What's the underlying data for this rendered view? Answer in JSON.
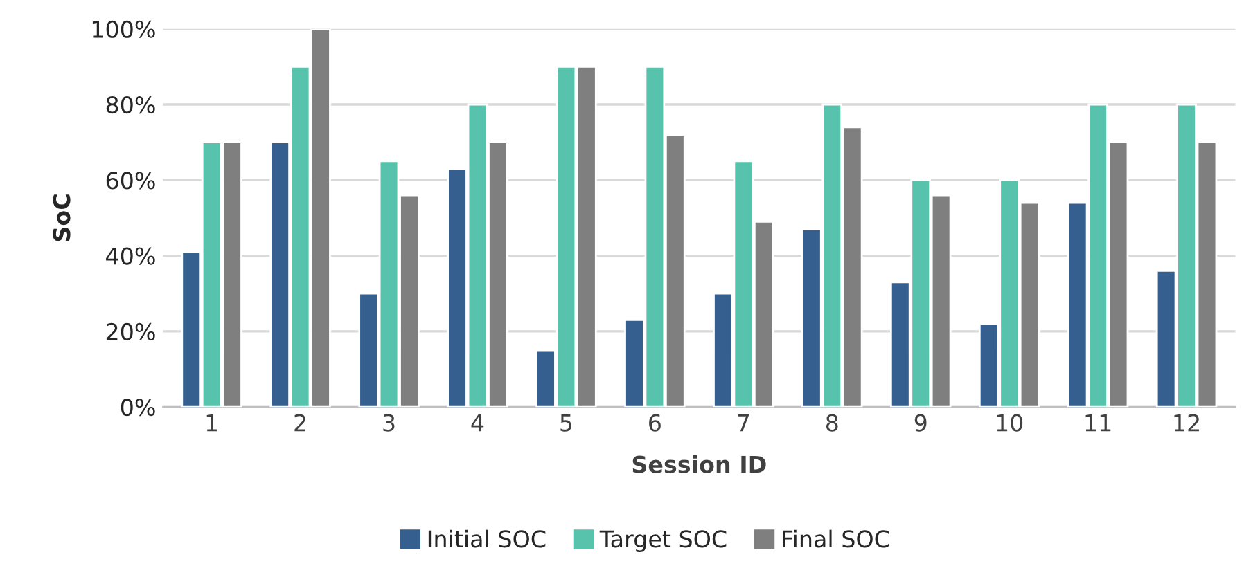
{
  "chart_data": {
    "type": "bar",
    "xlabel": "Session ID",
    "ylabel": "SoC",
    "categories": [
      "1",
      "2",
      "3",
      "4",
      "5",
      "6",
      "7",
      "8",
      "9",
      "10",
      "11",
      "12"
    ],
    "series": [
      {
        "name": "Initial SOC",
        "color": "#355f8e",
        "values": [
          41,
          70,
          30,
          63,
          15,
          23,
          30,
          47,
          33,
          22,
          54,
          36
        ]
      },
      {
        "name": "Target SOC",
        "color": "#58c3ad",
        "values": [
          70,
          90,
          65,
          80,
          90,
          90,
          65,
          80,
          60,
          60,
          80,
          80
        ]
      },
      {
        "name": "Final SOC",
        "color": "#7f7f7f",
        "values": [
          70,
          100,
          56,
          70,
          90,
          72,
          49,
          74,
          56,
          54,
          70,
          70
        ]
      }
    ],
    "ylim": [
      0,
      100
    ],
    "yticks": [
      {
        "value": 0,
        "label": "0%"
      },
      {
        "value": 20,
        "label": "20%"
      },
      {
        "value": 40,
        "label": "40%"
      },
      {
        "value": 60,
        "label": "60%"
      },
      {
        "value": 80,
        "label": "80%"
      },
      {
        "value": 100,
        "label": "100%"
      }
    ],
    "grid": "y",
    "legend": "bottom"
  }
}
